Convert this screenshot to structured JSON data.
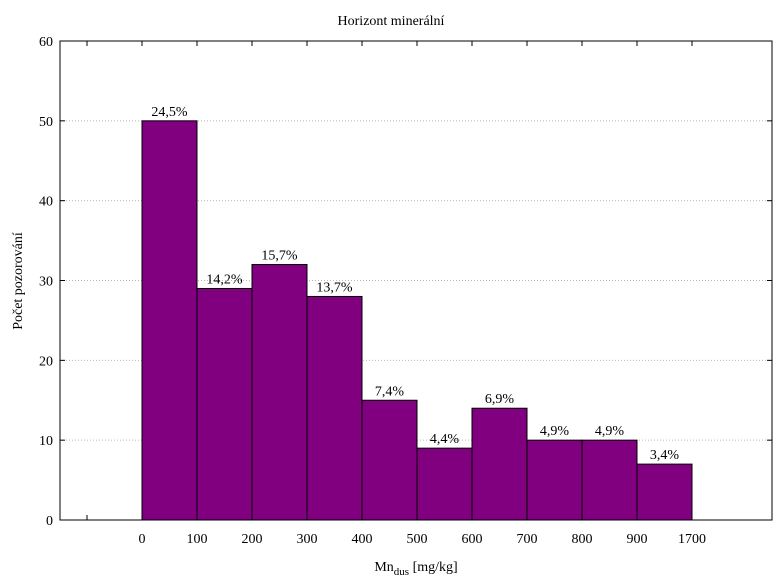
{
  "chart_data": {
    "type": "bar",
    "title": "Horizont minerální",
    "xlabel_main": "Mn",
    "xlabel_sub": "dus",
    "xlabel_unit": " [mg/kg]",
    "ylabel": "Počet pozorování",
    "ylim": [
      0,
      60
    ],
    "yticks": [
      0,
      10,
      20,
      30,
      40,
      50,
      60
    ],
    "x_tick_labels": [
      "0",
      "100",
      "200",
      "300",
      "400",
      "500",
      "600",
      "700",
      "800",
      "900",
      "1700"
    ],
    "values": [
      50,
      29,
      32,
      28,
      15,
      9,
      14,
      10,
      10,
      7
    ],
    "data_labels": [
      "24,5%",
      "14,2%",
      "15,7%",
      "13,7%",
      "7,4%",
      "4,4%",
      "6,9%",
      "4,9%",
      "4,9%",
      "3,4%"
    ],
    "bar_color": "#800080",
    "grid": true
  }
}
